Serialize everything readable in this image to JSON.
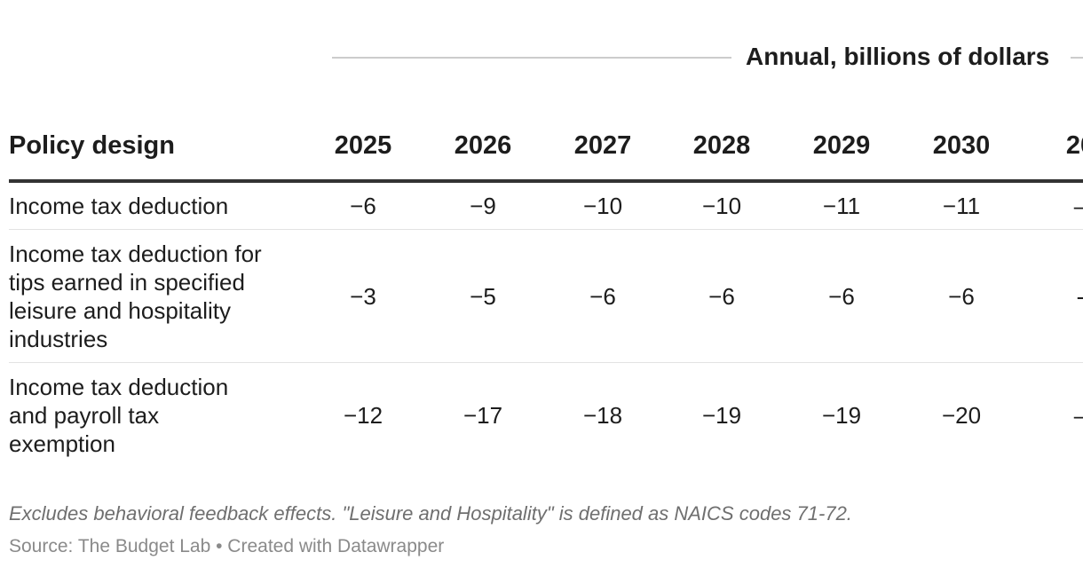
{
  "chart_data": {
    "type": "table",
    "group_header": "Annual, billions of dollars",
    "columns": [
      "Policy design",
      "2025",
      "2026",
      "2027",
      "2028",
      "2029",
      "2030",
      "20"
    ],
    "rows": [
      {
        "label": "Income tax deduction",
        "values": [
          "−6",
          "−9",
          "−10",
          "−10",
          "−11",
          "−11",
          "–"
        ]
      },
      {
        "label": "Income tax deduction for tips earned in specified leisure and hospitality industries",
        "values": [
          "−3",
          "−5",
          "−6",
          "−6",
          "−6",
          "−6",
          "-"
        ]
      },
      {
        "label": "Income tax deduction and payroll tax exemption",
        "values": [
          "−12",
          "−17",
          "−18",
          "−19",
          "−19",
          "−20",
          "–"
        ]
      }
    ],
    "notes": "Excludes behavioral feedback effects. \"Leisure and Hospitality\" is defined as NAICS codes 71-72.",
    "source": "Source: The Budget Lab • Created with Datawrapper"
  }
}
